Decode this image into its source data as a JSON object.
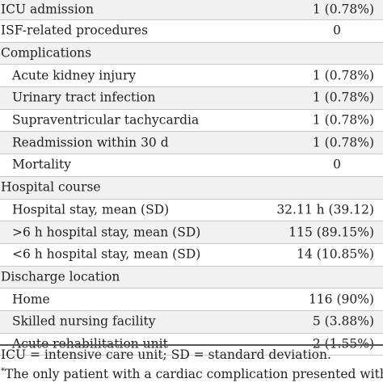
{
  "rows": [
    {
      "label": "ICU admission",
      "value": "1 (0.78%)",
      "indent": 0,
      "shaded": true
    },
    {
      "label": "ISF-related procedures",
      "value": "0",
      "indent": 0,
      "shaded": false
    },
    {
      "label": "Complications",
      "value": "",
      "indent": 0,
      "shaded": true,
      "sup": "*"
    },
    {
      "label": "Acute kidney injury",
      "value": "1 (0.78%)",
      "indent": 1,
      "shaded": false
    },
    {
      "label": "Urinary tract infection",
      "value": "1 (0.78%)",
      "indent": 1,
      "shaded": true
    },
    {
      "label": "Supraventricular tachycardia",
      "value": "1 (0.78%)",
      "indent": 1,
      "shaded": false
    },
    {
      "label": "Readmission within 30 d",
      "value": "1 (0.78%)",
      "indent": 1,
      "shaded": true,
      "sup": "‡"
    },
    {
      "label": "Mortality",
      "value": "0",
      "indent": 1,
      "shaded": false
    },
    {
      "label": "Hospital course",
      "value": "",
      "indent": 0,
      "shaded": true
    },
    {
      "label": "Hospital stay, mean (SD)",
      "value": "32.11 h (39.12)",
      "indent": 1,
      "shaded": false
    },
    {
      "label": ">6 h hospital stay, mean (SD)",
      "value": "115 (89.15%)",
      "indent": 1,
      "shaded": true
    },
    {
      "label": "<6 h hospital stay, mean (SD)",
      "value": "14 (10.85%)",
      "indent": 1,
      "shaded": false
    },
    {
      "label": "Discharge location",
      "value": "",
      "indent": 0,
      "shaded": true
    },
    {
      "label": "Home",
      "value": "116 (90%)",
      "indent": 1,
      "shaded": false
    },
    {
      "label": "Skilled nursing facility",
      "value": "5 (3.88%)",
      "indent": 1,
      "shaded": true
    },
    {
      "label": "Acute rehabilitation unit",
      "value": "2 (1.55%)",
      "indent": 1,
      "shaded": false
    }
  ],
  "footnotes": {
    "abbreviations": "ICU = intensive care unit; SD = standard deviation.",
    "star": "*",
    "note": "The only patient with a cardiac complication presented with"
  }
}
